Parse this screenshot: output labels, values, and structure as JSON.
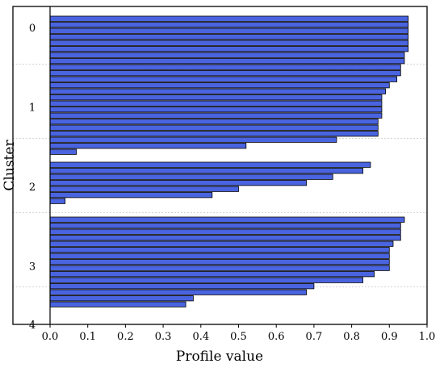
{
  "chart_data": {
    "type": "bar",
    "orientation": "horizontal",
    "xlabel": "Profile value",
    "ylabel": "Cluster",
    "xlim": [
      0.0,
      1.0
    ],
    "ylim": [
      0,
      4
    ],
    "x_ticks": [
      "0.0",
      "0.1",
      "0.2",
      "0.3",
      "0.4",
      "0.5",
      "0.6",
      "0.7",
      "0.8",
      "0.9",
      "1.0"
    ],
    "y_ticks": [
      "0",
      "1",
      "2",
      "3",
      "4"
    ],
    "bar_color": "#4a64e0",
    "bar_edge_color": "#000000",
    "grid": "dashed horizontal separators between cluster groups",
    "groups": [
      {
        "name": "Cluster 1",
        "values": [
          0.95,
          0.95,
          0.95,
          0.95,
          0.95,
          0.95,
          0.94,
          0.94,
          0.93,
          0.93,
          0.92,
          0.9,
          0.89,
          0.88,
          0.88,
          0.88,
          0.88,
          0.87,
          0.87,
          0.87,
          0.76,
          0.52,
          0.07
        ]
      },
      {
        "name": "Cluster 2",
        "values": [
          0.85,
          0.83,
          0.75,
          0.68,
          0.5,
          0.43,
          0.04
        ]
      },
      {
        "name": "Cluster 3",
        "values": [
          0.94,
          0.93,
          0.93,
          0.93,
          0.91,
          0.9,
          0.9,
          0.9,
          0.9,
          0.86,
          0.83,
          0.7,
          0.68,
          0.38,
          0.36
        ]
      }
    ]
  }
}
